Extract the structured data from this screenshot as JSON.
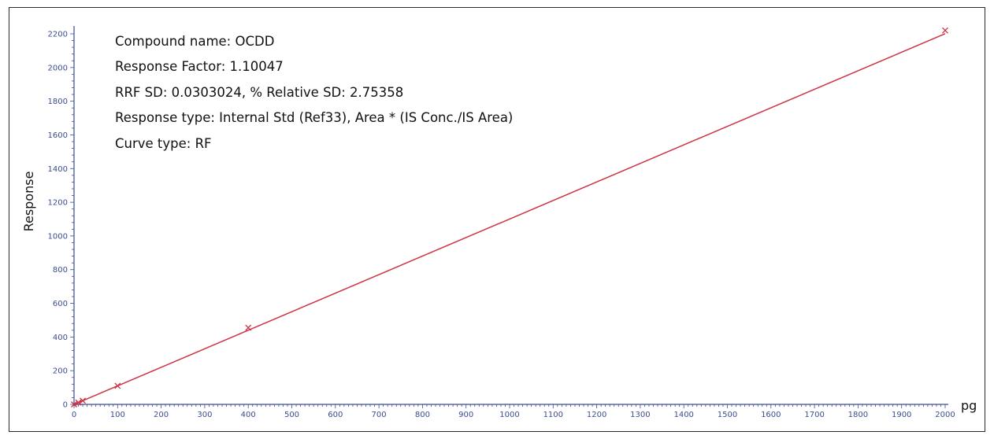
{
  "chart_data": {
    "type": "scatter",
    "title": "",
    "xlabel": "pg",
    "ylabel": "Response",
    "xlim": [
      0,
      2000
    ],
    "ylim": [
      0,
      2200
    ],
    "x_ticks": [
      "0",
      "100",
      "200",
      "300",
      "400",
      "500",
      "600",
      "700",
      "800",
      "900",
      "1000",
      "1100",
      "1200",
      "1300",
      "1400",
      "1500",
      "1600",
      "1700",
      "1800",
      "1900",
      "2000"
    ],
    "y_ticks": [
      "0",
      "200",
      "400",
      "600",
      "800",
      "1000",
      "1200",
      "1400",
      "1600",
      "1800",
      "2000",
      "2200"
    ],
    "series": [
      {
        "marker": "x",
        "color": "#cc3344",
        "x": [
          0,
          10,
          20,
          100,
          400,
          2000
        ],
        "y": [
          0,
          11,
          22,
          110,
          455,
          2220
        ]
      }
    ],
    "fit_line": {
      "x": [
        0,
        2000
      ],
      "y": [
        0,
        2200.94
      ],
      "color": "#cc3344"
    },
    "annotations": [
      "Compound name: OCDD",
      "Response Factor: 1.10047",
      "RRF SD: 0.0303024, % Relative SD: 2.75358",
      "Response type: Internal Std (Ref33), Area * (IS Conc./IS Area)",
      "Curve type: RF"
    ],
    "grid": false,
    "legend": "none"
  }
}
